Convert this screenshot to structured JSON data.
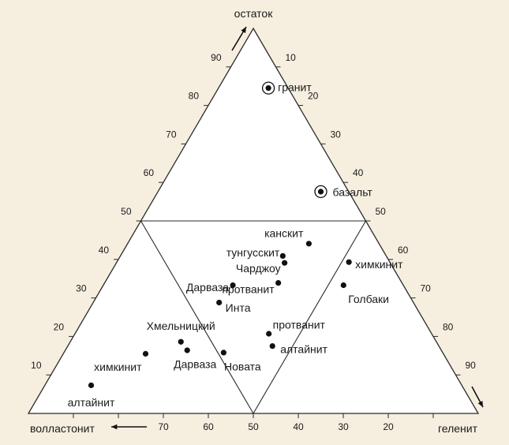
{
  "diagram": {
    "colors": {
      "background": "#f6efe0",
      "triangle_fill": "#ffffff",
      "line": "#2a2a2a",
      "point": "#111111"
    },
    "vertex_labels": {
      "top": "остаток",
      "bottom_left": "волластонит",
      "bottom_right": "геленит"
    },
    "left_ticks": [
      "10",
      "20",
      "30",
      "40",
      "50",
      "60",
      "70",
      "80",
      "90"
    ],
    "right_ticks": [
      "10",
      "20",
      "30",
      "40",
      "50",
      "60",
      "70",
      "80",
      "90"
    ],
    "bottom_ticks": [
      "70",
      "60",
      "50",
      "40",
      "30",
      "20"
    ],
    "points": [
      {
        "label": "гранит",
        "ostatok": 84.5,
        "gelenit": 11.1,
        "circled": true
      },
      {
        "label": "базальт",
        "ostatok": 57.6,
        "gelenit": 36.2,
        "circled": true
      },
      {
        "label": "канскит",
        "ostatok": 44.1,
        "gelenit": 40.3,
        "circled": false
      },
      {
        "label": "тунгусскит",
        "ostatok": 40.9,
        "gelenit": 36.1,
        "circled": false
      },
      {
        "label": "Чарджоу",
        "ostatok": 39.1,
        "gelenit": 37.4,
        "circled": false
      },
      {
        "label": "протванит",
        "ostatok": 33.9,
        "gelenit": 38.6,
        "circled": false
      },
      {
        "label": "химкинит",
        "ostatok": 39.3,
        "gelenit": 51.6,
        "circled": false
      },
      {
        "label": "Голбаки",
        "ostatok": 33.3,
        "gelenit": 53.4,
        "circled": false
      },
      {
        "label": "Дарваза",
        "ostatok": 33.3,
        "gelenit": 28.8,
        "circled": false
      },
      {
        "label": "Инта",
        "ostatok": 28.8,
        "gelenit": 28.0,
        "circled": false
      },
      {
        "label": "протванит",
        "ostatok": 20.7,
        "gelenit": 43.1,
        "circled": false
      },
      {
        "label": "алтайнит",
        "ostatok": 17.5,
        "gelenit": 45.5,
        "circled": false
      },
      {
        "label": "Хмельницкий",
        "ostatok": 18.6,
        "gelenit": 24.6,
        "circled": false
      },
      {
        "label": "Дарваза",
        "ostatok": 16.4,
        "gelenit": 27.1,
        "circled": false
      },
      {
        "label": "химкинит",
        "ostatok": 15.5,
        "gelenit": 18.3,
        "circled": false
      },
      {
        "label": "Новата",
        "ostatok": 15.8,
        "gelenit": 35.5,
        "circled": false
      },
      {
        "label": "алтайнит",
        "ostatok": 7.3,
        "gelenit": 10.3,
        "circled": false
      }
    ]
  }
}
